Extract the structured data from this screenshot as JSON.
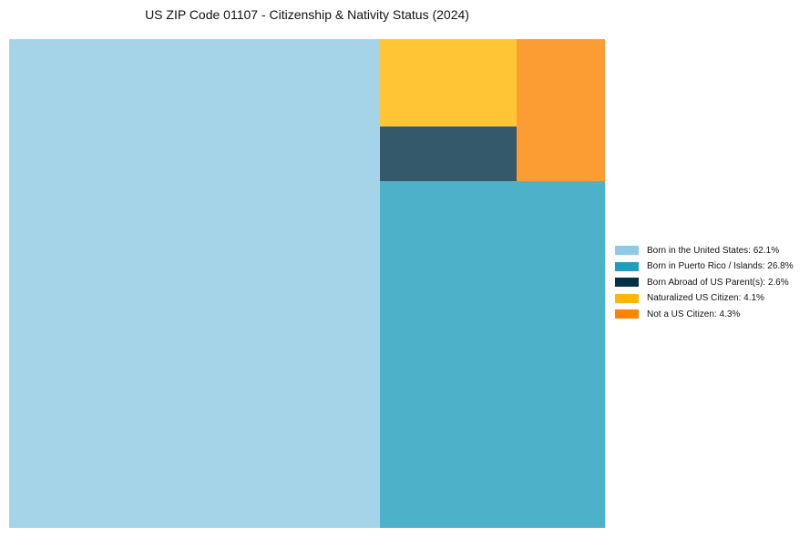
{
  "chart_data": {
    "type": "treemap",
    "title": "US ZIP Code 01107 - Citizenship & Nativity Status (2024)",
    "items": [
      {
        "label": "Born in the United States",
        "value": 62.1,
        "legend": "Born in the United States: 62.1%",
        "color": "#8ecae6",
        "tile_color": "#a5d4e9"
      },
      {
        "label": "Born in Puerto Rico / Islands",
        "value": 26.8,
        "legend": "Born in Puerto Rico / Islands: 26.8%",
        "color": "#219ebc",
        "tile_color": "#4db1ca"
      },
      {
        "label": "Born Abroad of US Parent(s)",
        "value": 2.6,
        "legend": "Born Abroad of US Parent(s): 2.6%",
        "color": "#023047",
        "tile_color": "#34596b"
      },
      {
        "label": "Naturalized US Citizen",
        "value": 4.1,
        "legend": "Naturalized US Citizen: 4.1%",
        "color": "#ffb703",
        "tile_color": "#ffc535"
      },
      {
        "label": "Not a US Citizen",
        "value": 4.3,
        "legend": "Not a US Citizen: 4.3%",
        "color": "#fb8500",
        "tile_color": "#fc9d33"
      }
    ],
    "legend_position": "right"
  }
}
